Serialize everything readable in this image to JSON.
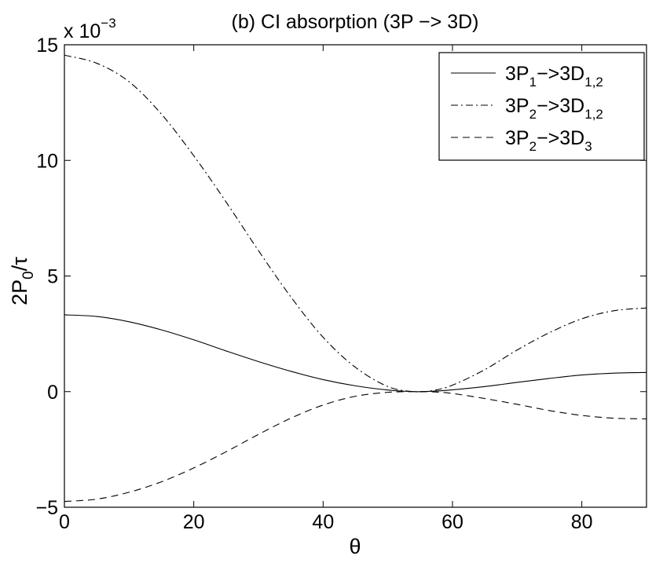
{
  "chart_data": {
    "type": "line",
    "title": "(b) CI absorption (3P −> 3D)",
    "xlabel": "θ",
    "ylabel": {
      "base": "2P",
      "sub": "0",
      "rest": "/τ"
    },
    "y_multiplier": {
      "base": "x 10",
      "exp": "−3"
    },
    "xlim": [
      0,
      90
    ],
    "ylim": [
      -5,
      15
    ],
    "x_ticks": [
      0,
      20,
      40,
      60,
      80
    ],
    "y_ticks": [
      -5,
      0,
      5,
      10,
      15
    ],
    "x_tick_labels": [
      "0",
      "20",
      "40",
      "60",
      "80"
    ],
    "y_tick_labels": [
      "−5",
      "0",
      "5",
      "10",
      "15"
    ],
    "grid": false,
    "legend_position": "top-right",
    "series": [
      {
        "name": "3P1->3D1,2",
        "legend": {
          "a": "3P",
          "sa": "1",
          "b": "−>3D",
          "sb": "1,2"
        },
        "dash": "solid",
        "x": [
          0,
          5,
          10,
          15,
          20,
          25,
          30,
          35,
          40,
          45,
          50,
          54,
          57,
          60,
          65,
          70,
          75,
          80,
          85,
          90
        ],
        "values": [
          3.32,
          3.25,
          3.02,
          2.67,
          2.24,
          1.76,
          1.3,
          0.88,
          0.52,
          0.25,
          0.07,
          0.0,
          0.02,
          0.08,
          0.22,
          0.4,
          0.57,
          0.72,
          0.8,
          0.83
        ]
      },
      {
        "name": "3P2->3D1,2",
        "legend": {
          "a": "3P",
          "sa": "2",
          "b": "−>3D",
          "sb": "1,2"
        },
        "dash": "dashdot",
        "x": [
          0,
          5,
          10,
          15,
          20,
          25,
          30,
          35,
          40,
          45,
          50,
          54,
          57,
          60,
          65,
          70,
          75,
          80,
          85,
          90
        ],
        "values": [
          14.55,
          14.2,
          13.4,
          12.0,
          10.2,
          8.2,
          6.1,
          4.1,
          2.35,
          1.05,
          0.22,
          0.0,
          0.05,
          0.28,
          0.95,
          1.8,
          2.55,
          3.15,
          3.5,
          3.62
        ]
      },
      {
        "name": "3P2->3D3",
        "legend": {
          "a": "3P",
          "sa": "2",
          "b": "−>3D",
          "sb": "3"
        },
        "dash": "dashed",
        "x": [
          0,
          5,
          10,
          15,
          20,
          25,
          30,
          35,
          40,
          45,
          50,
          54,
          57,
          60,
          65,
          70,
          75,
          80,
          85,
          90
        ],
        "values": [
          -4.75,
          -4.65,
          -4.35,
          -3.9,
          -3.3,
          -2.6,
          -1.85,
          -1.15,
          -0.58,
          -0.2,
          -0.03,
          0.0,
          -0.01,
          -0.08,
          -0.3,
          -0.55,
          -0.82,
          -1.03,
          -1.15,
          -1.18
        ]
      }
    ]
  }
}
